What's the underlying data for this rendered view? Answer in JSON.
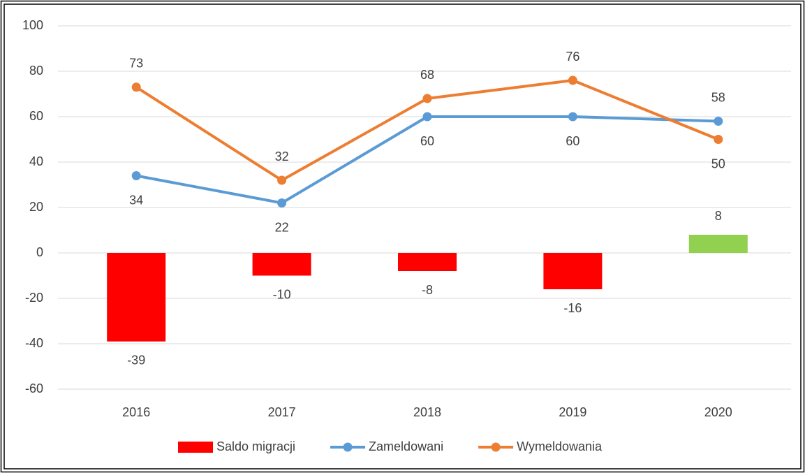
{
  "chart_data": {
    "type": "combo",
    "categories": [
      "2016",
      "2017",
      "2018",
      "2019",
      "2020"
    ],
    "series": [
      {
        "name": "Saldo migracji",
        "type": "bar",
        "color": "#ff0000",
        "colors": [
          "#ff0000",
          "#ff0000",
          "#ff0000",
          "#ff0000",
          "#92d050"
        ],
        "values": [
          -39,
          -10,
          -8,
          -16,
          8
        ]
      },
      {
        "name": "Zameldowani",
        "type": "line",
        "color": "#5b9bd5",
        "values": [
          34,
          22,
          60,
          60,
          58
        ]
      },
      {
        "name": "Wymeldowania",
        "type": "line",
        "color": "#ed7d31",
        "values": [
          73,
          32,
          68,
          76,
          50
        ]
      }
    ],
    "ylim": [
      -60,
      100
    ],
    "yticks": [
      -60,
      -40,
      -20,
      0,
      20,
      40,
      60,
      80,
      100
    ],
    "grid": true,
    "legend": "bottom"
  }
}
